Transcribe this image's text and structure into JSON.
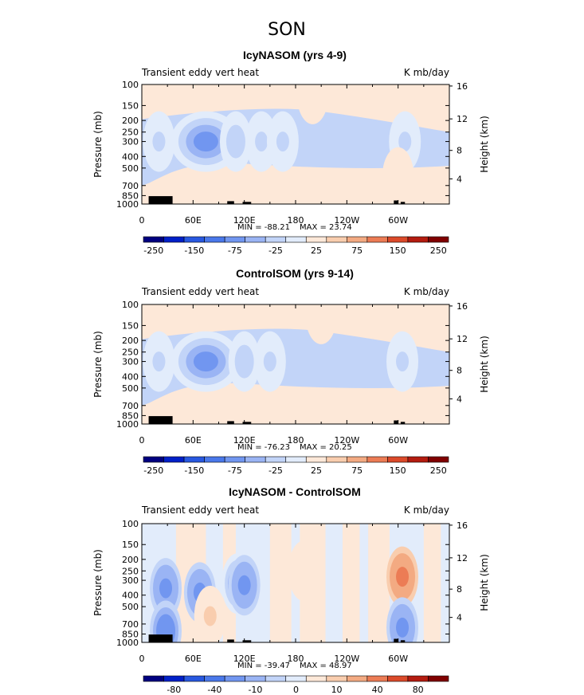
{
  "figure_title": "SON",
  "colors": {
    "scale": [
      "#000080",
      "#0020c8",
      "#2858e0",
      "#4a78ea",
      "#7196f0",
      "#9ab4f4",
      "#c2d4f8",
      "#e2ecfb",
      "#fde8d8",
      "#f9cdae",
      "#f3aa82",
      "#ec7c55",
      "#db4a2a",
      "#b41c10",
      "#800000"
    ],
    "white_band": "#e2ecfb",
    "land": "#000000"
  },
  "chart_data": [
    {
      "type": "heatmap",
      "title": "IcyNASOM (yrs 4-9)",
      "subtitle_left": "Transient eddy vert heat",
      "subtitle_right": "K mb/day",
      "ylabel": "Pressure (mb)",
      "y2label": "Height (km)",
      "y_ticks": [
        "100",
        "150",
        "200",
        "250",
        "300",
        "400",
        "500",
        "700",
        "850",
        "1000"
      ],
      "y2_ticks": [
        "16",
        "12",
        "8",
        "4"
      ],
      "x_ticks": [
        "0",
        "60E",
        "120E",
        "180",
        "120W",
        "60W"
      ],
      "min_label": "MIN = -88.21",
      "max_label": "MAX = 23.74",
      "min": -88.21,
      "max": 23.74,
      "colorbar_labels": [
        "-250",
        "-150",
        "-75",
        "-25",
        "25",
        "75",
        "150",
        "250"
      ],
      "colorbar_levels": [
        -400,
        -300,
        -250,
        -200,
        -150,
        -100,
        -75,
        -50,
        -25,
        0,
        25,
        50,
        75,
        100,
        150,
        200,
        250,
        300,
        400
      ],
      "features": [
        {
          "lon": 20,
          "p": 300,
          "value": -28
        },
        {
          "lon": 75,
          "p": 300,
          "value": -88
        },
        {
          "lon": 110,
          "p": 300,
          "value": -35
        },
        {
          "lon": 140,
          "p": 300,
          "value": -30
        },
        {
          "lon": 165,
          "p": 300,
          "value": -32
        },
        {
          "lon": 308,
          "p": 300,
          "value": -30
        },
        {
          "lon": 200,
          "p": 120,
          "value": 10
        },
        {
          "lon": 300,
          "p": 600,
          "value": 8
        }
      ]
    },
    {
      "type": "heatmap",
      "title": "ControlSOM (yrs 9-14)",
      "subtitle_left": "Transient eddy vert heat",
      "subtitle_right": "K mb/day",
      "ylabel": "Pressure (mb)",
      "y2label": "Height (km)",
      "y_ticks": [
        "100",
        "150",
        "200",
        "250",
        "300",
        "400",
        "500",
        "700",
        "850",
        "1000"
      ],
      "y2_ticks": [
        "16",
        "12",
        "8",
        "4"
      ],
      "x_ticks": [
        "0",
        "60E",
        "120E",
        "180",
        "120W",
        "60W"
      ],
      "min_label": "MIN = -76.23",
      "max_label": "MAX = 20.25",
      "min": -76.23,
      "max": 20.25,
      "colorbar_labels": [
        "-250",
        "-150",
        "-75",
        "-25",
        "25",
        "75",
        "150",
        "250"
      ],
      "colorbar_levels": [
        -400,
        -300,
        -250,
        -200,
        -150,
        -100,
        -75,
        -50,
        -25,
        0,
        25,
        50,
        75,
        100,
        150,
        200,
        250,
        300,
        400
      ],
      "features": [
        {
          "lon": 20,
          "p": 300,
          "value": -28
        },
        {
          "lon": 75,
          "p": 300,
          "value": -76
        },
        {
          "lon": 120,
          "p": 300,
          "value": -40
        },
        {
          "lon": 150,
          "p": 300,
          "value": -30
        },
        {
          "lon": 305,
          "p": 300,
          "value": -30
        },
        {
          "lon": 210,
          "p": 120,
          "value": 8
        }
      ]
    },
    {
      "type": "heatmap",
      "title": "IcyNASOM - ControlSOM",
      "subtitle_left": "Transient eddy vert heat",
      "subtitle_right": "K mb/day",
      "ylabel": "Pressure (mb)",
      "y2label": "Height (km)",
      "y_ticks": [
        "100",
        "150",
        "200",
        "250",
        "300",
        "400",
        "500",
        "700",
        "850",
        "1000"
      ],
      "y2_ticks": [
        "16",
        "12",
        "8",
        "4"
      ],
      "x_ticks": [
        "0",
        "60E",
        "120E",
        "180",
        "120W",
        "60W"
      ],
      "min_label": "MIN = -39.47",
      "max_label": "MAX = 48.97",
      "min": -39.47,
      "max": 48.97,
      "colorbar_labels": [
        "-80",
        "-40",
        "-10",
        "0",
        "10",
        "40",
        "80"
      ],
      "colorbar_levels": [
        -160,
        -120,
        -100,
        -80,
        -60,
        -40,
        -20,
        -10,
        -5,
        0,
        5,
        10,
        20,
        40,
        60,
        80,
        100,
        120,
        160
      ],
      "features": [
        {
          "lon": 28,
          "p": 350,
          "value": -25
        },
        {
          "lon": 28,
          "p": 800,
          "value": -35
        },
        {
          "lon": 68,
          "p": 380,
          "value": -20
        },
        {
          "lon": 112,
          "p": 320,
          "value": -18
        },
        {
          "lon": 120,
          "p": 330,
          "value": -22
        },
        {
          "lon": 190,
          "p": 250,
          "value": 8
        },
        {
          "lon": 305,
          "p": 280,
          "value": 48.97
        },
        {
          "lon": 305,
          "p": 750,
          "value": -20
        },
        {
          "lon": 80,
          "p": 600,
          "value": 10
        }
      ]
    }
  ]
}
